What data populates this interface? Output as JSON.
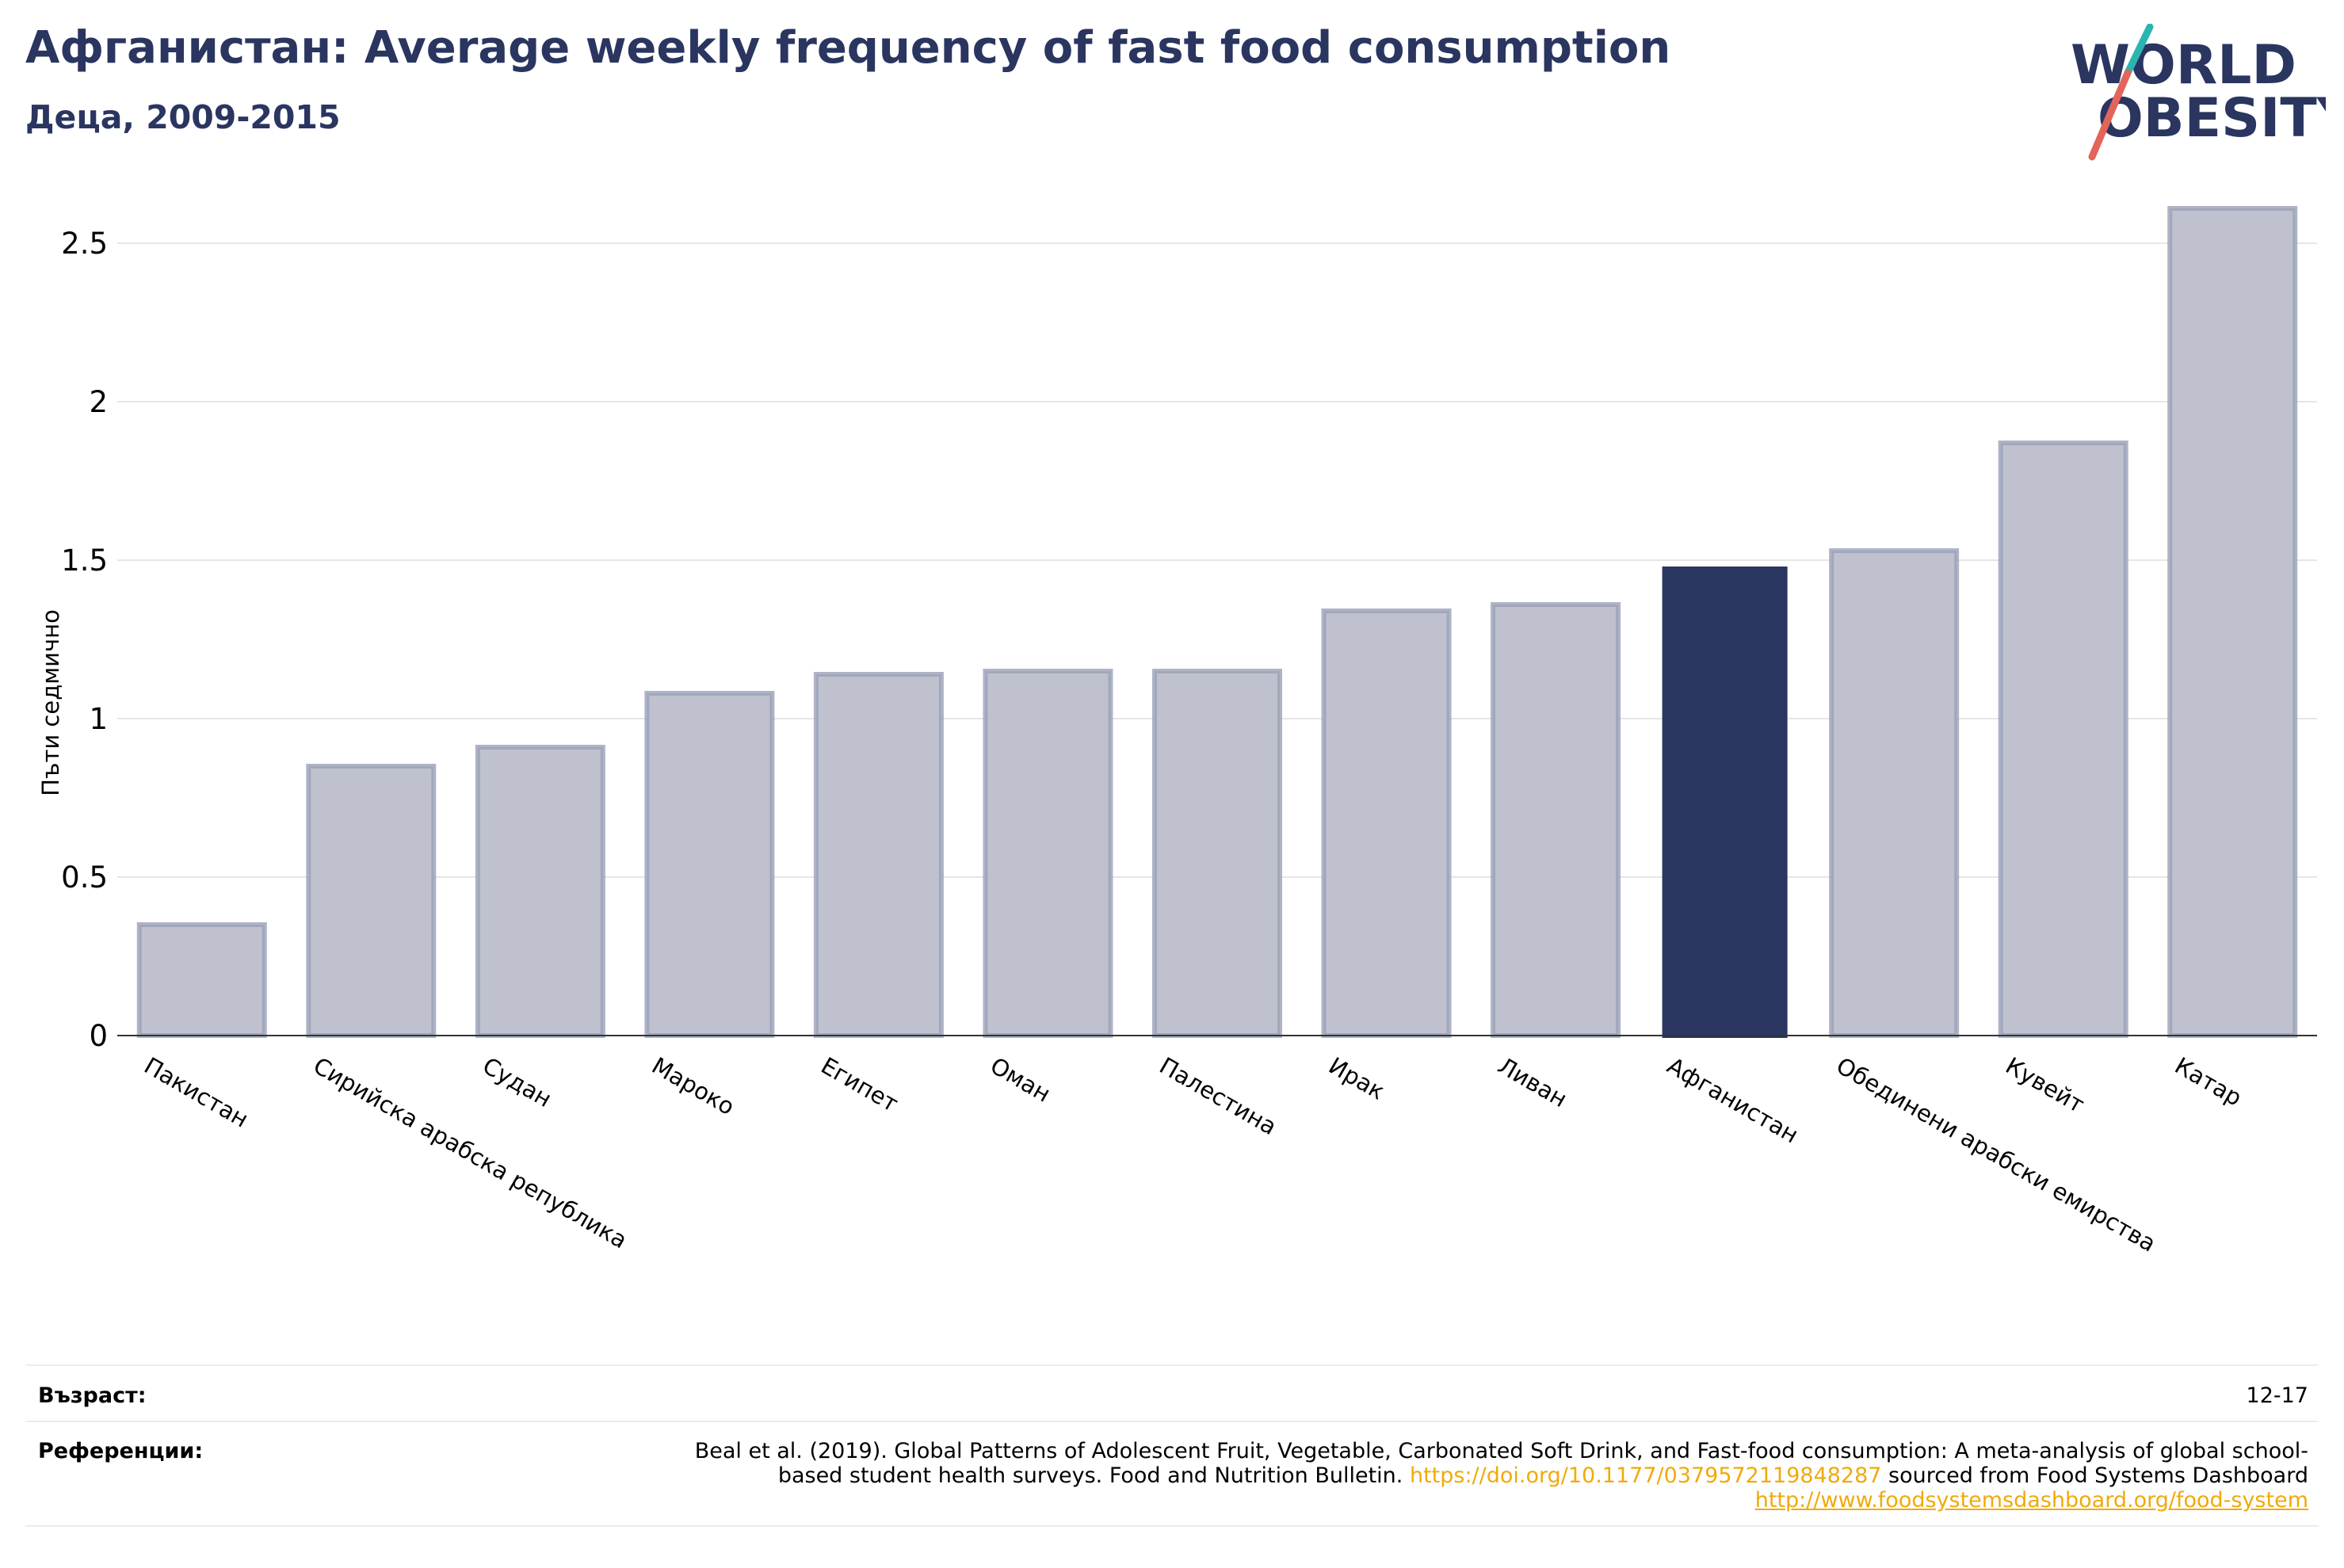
{
  "header": {
    "title": "Афганистан: Average weekly frequency of fast food consumption",
    "subtitle": "Деца, 2009-2015"
  },
  "logo": {
    "line1": "WORLD",
    "line2": "OBESITY",
    "accent_teal": "#2bb5b0",
    "accent_red": "#e2645a",
    "color": "#2a3560"
  },
  "chart_data": {
    "type": "bar",
    "ylabel": "Пъти седмично",
    "ylim": [
      0,
      2.7
    ],
    "yticks": [
      0,
      0.5,
      1,
      1.5,
      2,
      2.5
    ],
    "ytick_labels": [
      "0",
      "0.5",
      "1",
      "1.5",
      "2",
      "2.5"
    ],
    "grid": true,
    "categories": [
      "Пакистан",
      "Сирийска арабска република",
      "Судан",
      "Мароко",
      "Египет",
      "Оман",
      "Палестина",
      "Ирак",
      "Ливан",
      "Афганистан",
      "Обединени арабски емирства",
      "Кувейт",
      "Катар"
    ],
    "values": [
      0.35,
      0.85,
      0.91,
      1.08,
      1.14,
      1.15,
      1.15,
      1.34,
      1.36,
      1.48,
      1.53,
      1.87,
      2.61
    ],
    "highlight": "Афганистан",
    "colors": {
      "bar": "#bfc2ce",
      "bar_border": "#9aa0b8",
      "highlight": "#2a3560"
    }
  },
  "footer": {
    "age_label": "Възраст:",
    "age_value": "12-17",
    "refs_label": "Референции:",
    "refs_text1": "Beal et al. (2019). Global Patterns of Adolescent Fruit, Vegetable, Carbonated Soft Drink, and Fast-food consumption: A meta-analysis of global school-based student health surveys. Food and Nutrition Bulletin. ",
    "refs_link1": "https://doi.org/10.1177/0379572119848287",
    "refs_text2": " sourced from Food Systems Dashboard ",
    "refs_link2": "http://www.foodsystemsdashboard.org/food-system"
  }
}
